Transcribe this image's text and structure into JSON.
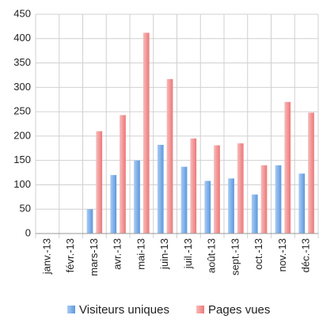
{
  "chart_data": {
    "type": "bar",
    "categories": [
      "janv.-13",
      "févr.-13",
      "mars-13",
      "avr.-13",
      "mai-13",
      "juin-13",
      "juil.-13",
      "août-13",
      "sept.-13",
      "oct.-13",
      "nov.-13",
      "déc.-13"
    ],
    "series": [
      {
        "name": "Visiteurs uniques",
        "color": "#6fa8e8",
        "values": [
          0,
          0,
          50,
          120,
          150,
          182,
          137,
          108,
          113,
          80,
          140,
          123
        ]
      },
      {
        "name": "Pages vues",
        "color": "#f08c8c",
        "values": [
          0,
          0,
          210,
          243,
          412,
          317,
          195,
          181,
          185,
          140,
          270,
          248
        ]
      }
    ],
    "ylim": [
      0,
      450
    ],
    "yticks": [
      0,
      50,
      100,
      150,
      200,
      250,
      300,
      350,
      400,
      450
    ],
    "grid": true,
    "legend": "bottom"
  }
}
